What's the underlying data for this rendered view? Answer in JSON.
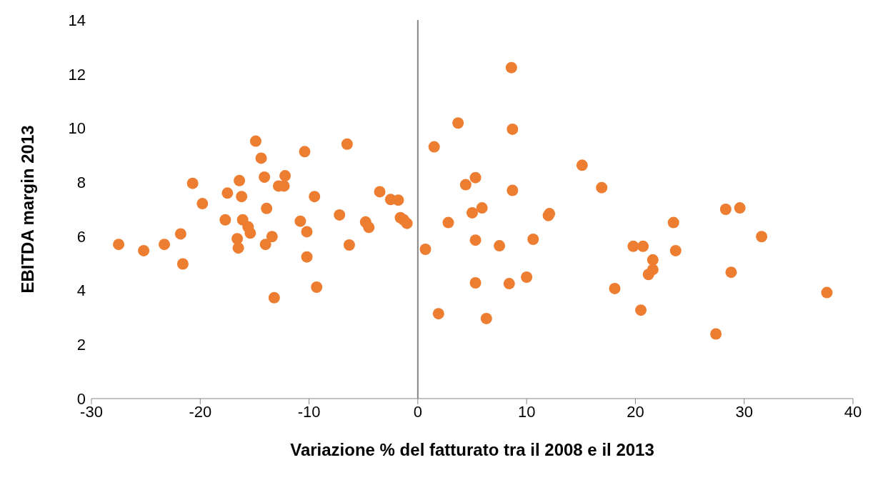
{
  "chart_data": {
    "type": "scatter",
    "xlabel": "Variazione % del fatturato tra il 2008 e il 2013",
    "ylabel": "EBITDA margin 2013",
    "xlim": [
      -30,
      40
    ],
    "xticks": [
      -30,
      -20,
      -10,
      0,
      10,
      20,
      30,
      40
    ],
    "ylim": [
      0,
      14
    ],
    "yticks": [
      0,
      2,
      4,
      6,
      8,
      10,
      12,
      14
    ],
    "grid": false,
    "legend": false,
    "marker": "circle",
    "ref_lines": [
      {
        "axis": "x",
        "value": 0,
        "color": "#868686"
      }
    ],
    "series": [
      {
        "color": "#ed7d31",
        "x": [
          -27.5,
          -25.2,
          -23.3,
          -21.8,
          -21.6,
          -20.7,
          -19.8,
          -17.5,
          -17.7,
          -16.6,
          -16.5,
          -16.4,
          -16.2,
          -16.1,
          -15.6,
          -15.4,
          -14.9,
          -14.4,
          -14.1,
          -14.0,
          -13.9,
          -13.4,
          -13.2,
          -12.8,
          -12.3,
          -12.2,
          -10.8,
          -10.4,
          -10.2,
          -10.2,
          -9.5,
          -9.3,
          -7.2,
          -6.5,
          -6.3,
          -4.8,
          -4.5,
          -3.5,
          -2.5,
          -1.8,
          -1.6,
          -1.3,
          -1.0,
          0.7,
          1.5,
          1.9,
          2.8,
          3.7,
          4.4,
          5.0,
          5.3,
          5.3,
          5.3,
          5.9,
          6.3,
          7.5,
          8.4,
          8.6,
          8.7,
          8.7,
          10.0,
          10.6,
          12.0,
          12.1,
          15.1,
          16.9,
          18.1,
          19.8,
          20.5,
          20.7,
          21.2,
          21.6,
          21.6,
          23.5,
          23.7,
          27.4,
          28.3,
          28.8,
          29.6,
          31.6,
          37.6
        ],
        "values": [
          5.7,
          5.47,
          5.7,
          6.09,
          4.98,
          7.96,
          7.21,
          7.6,
          6.61,
          5.91,
          5.57,
          8.06,
          7.47,
          6.61,
          6.35,
          6.12,
          9.52,
          8.89,
          8.19,
          5.7,
          7.03,
          5.99,
          3.73,
          7.86,
          7.86,
          8.24,
          6.56,
          9.13,
          6.17,
          5.24,
          7.47,
          4.12,
          6.79,
          9.41,
          5.68,
          6.53,
          6.33,
          7.65,
          7.36,
          7.34,
          6.69,
          6.61,
          6.48,
          5.52,
          9.31,
          3.14,
          6.51,
          10.19,
          7.91,
          6.87,
          8.17,
          5.86,
          4.28,
          7.05,
          2.96,
          5.65,
          4.25,
          12.24,
          9.96,
          7.7,
          4.49,
          5.89,
          6.77,
          6.84,
          8.63,
          7.8,
          4.07,
          5.63,
          3.27,
          5.63,
          4.59,
          5.13,
          4.77,
          6.51,
          5.47,
          2.39,
          7.0,
          4.67,
          7.05,
          5.99,
          3.92
        ]
      }
    ]
  }
}
